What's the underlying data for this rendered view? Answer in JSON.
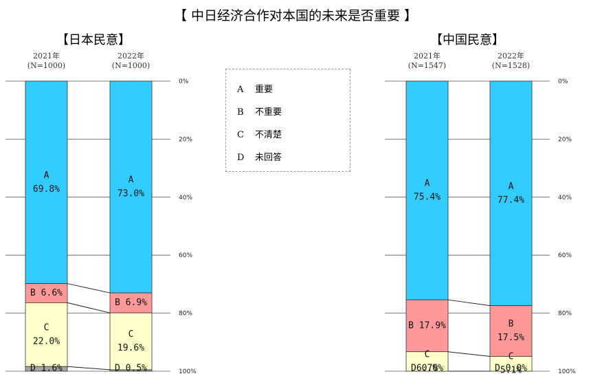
{
  "title": "【  中日经济合作对本国的未来是否重要     】",
  "legend": [
    {
      "key": "A",
      "label": "重要"
    },
    {
      "key": "B",
      "label": "不重要"
    },
    {
      "key": "C",
      "label": "不清楚"
    },
    {
      "key": "D",
      "label": "未回答"
    }
  ],
  "colors": {
    "A": "#33ccff",
    "B": "#ff9999",
    "C": "#ffffcc",
    "D": "#a6a6a6"
  },
  "chart_data": [
    {
      "type": "bar",
      "title": "【日本民意】",
      "categories": [
        "2021年\n(N=1000)",
        "2022年\n(N=1000)"
      ],
      "series": [
        {
          "name": "A",
          "values": [
            69.8,
            73.0
          ]
        },
        {
          "name": "B",
          "values": [
            6.6,
            6.9
          ]
        },
        {
          "name": "C",
          "values": [
            22.0,
            19.6
          ]
        },
        {
          "name": "D",
          "values": [
            1.6,
            0.5
          ]
        }
      ],
      "data_labels": [
        [
          "A\n69.8%",
          "B 6.6%",
          "C\n22.0%",
          "D 1.6%"
        ],
        [
          "A\n73.0%",
          "B 6.9%",
          "C\n19.6%",
          "D 0.5%"
        ]
      ],
      "yticks": [
        "0%",
        "20%",
        "40%",
        "60%",
        "80%",
        "100%"
      ],
      "ylim": [
        0,
        100
      ]
    },
    {
      "type": "bar",
      "title": "【中国民意】",
      "categories": [
        "2021年\n(N=1547)",
        "2022年\n(N=1528)"
      ],
      "series": [
        {
          "name": "A",
          "values": [
            75.4,
            77.4
          ]
        },
        {
          "name": "B",
          "values": [
            17.9,
            17.5
          ]
        },
        {
          "name": "C",
          "values": [
            6.7,
            5.1
          ]
        },
        {
          "name": "D",
          "values": [
            0.0,
            0.0
          ]
        }
      ],
      "data_labels": [
        [
          "A\n75.4%",
          "B 17.9%",
          "C\n6.7%",
          "D 0.0%"
        ],
        [
          "A\n77.4%",
          "B\n17.5%",
          "C\n5.1%",
          "D 0.0%"
        ]
      ],
      "yticks": [
        "0%",
        "20%",
        "40%",
        "60%",
        "80%",
        "100%"
      ],
      "ylim": [
        0,
        100
      ]
    }
  ]
}
